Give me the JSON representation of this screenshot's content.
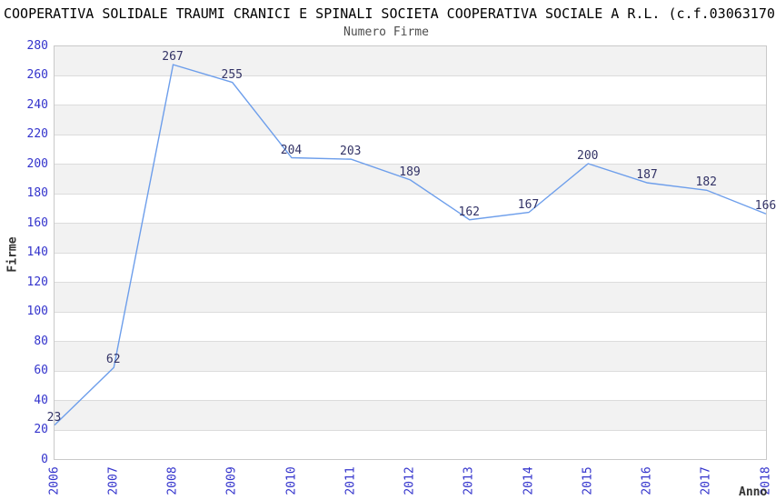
{
  "header": {
    "title": "COOPERATIVA SOLIDALE TRAUMI CRANICI E SPINALI SOCIETA COOPERATIVA SOCIALE A R.L. (c.f.03063170",
    "subtitle": "Numero Firme"
  },
  "chart_data": {
    "type": "line",
    "title": "Numero Firme",
    "categories": [
      "2006",
      "2007",
      "2008",
      "2009",
      "2010",
      "2011",
      "2012",
      "2013",
      "2014",
      "2015",
      "2016",
      "2017",
      "2018"
    ],
    "values": [
      23,
      62,
      267,
      255,
      204,
      203,
      189,
      162,
      167,
      200,
      187,
      182,
      166
    ],
    "series_name": "Numero Firme",
    "xlabel": "Anno",
    "ylabel": "Firme",
    "ylim": [
      0,
      280
    ],
    "ytick_step": 20,
    "grid": true,
    "alternating_bands": true,
    "legend": "none",
    "colors": {
      "line": "#6d9eeb",
      "tick_label": "#3333cc",
      "data_label": "#333366",
      "band": "#f2f2f2",
      "gridline": "#dcdcdc",
      "plot_border": "#c9c9c9",
      "title": "#000000",
      "subtitle": "#4d4d4d",
      "axis_title": "#333333"
    }
  }
}
